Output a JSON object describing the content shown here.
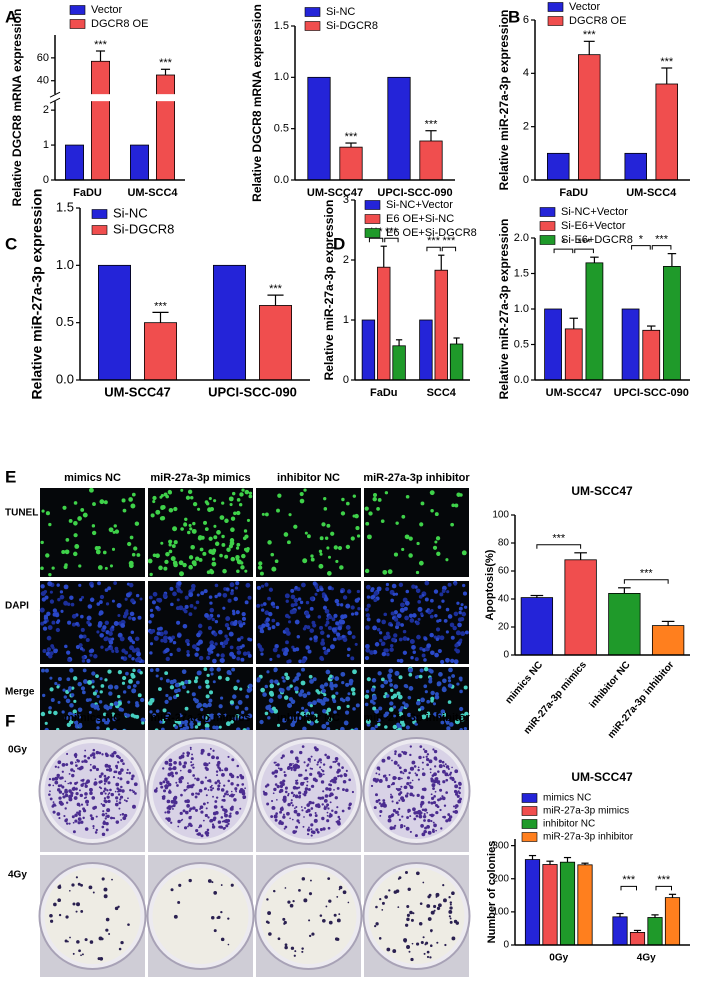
{
  "chart_data": [
    {
      "type": "bar",
      "panel": "A",
      "ylabel": "Relative DGCR8 mRNA expression",
      "categories": [
        "FaDU",
        "UM-SCC4"
      ],
      "series": [
        {
          "name": "Vector",
          "color": "#2424d8",
          "values": [
            1,
            1
          ]
        },
        {
          "name": "DGCR8 OE",
          "color": "#f04e4e",
          "values": [
            57,
            45
          ],
          "errors": [
            9,
            5
          ]
        }
      ],
      "significance": [
        "***",
        "***"
      ],
      "ylim": [
        0,
        80
      ],
      "ybreak": [
        2.2,
        30
      ],
      "yticks": [
        0,
        1,
        2,
        40,
        60
      ]
    },
    {
      "type": "bar",
      "ylabel": "Relative DGCR8 mRNA expression",
      "categories": [
        "UM-SCC47",
        "UPCI-SCC-090"
      ],
      "series": [
        {
          "name": "Si-NC",
          "color": "#2424d8",
          "values": [
            1,
            1
          ]
        },
        {
          "name": "Si-DGCR8",
          "color": "#f04e4e",
          "values": [
            0.32,
            0.38
          ],
          "errors": [
            0.04,
            0.1
          ]
        }
      ],
      "significance": [
        "***",
        "***"
      ],
      "ylim": [
        0,
        1.5
      ],
      "yticks": [
        {
          "value": 0,
          "label": "0.0"
        },
        {
          "value": 0.5,
          "label": "0.5"
        },
        {
          "value": 1,
          "label": "1.0"
        },
        {
          "value": 1.5,
          "label": "1.5"
        }
      ]
    },
    {
      "type": "bar",
      "panel": "B",
      "ylabel": "Relative miR-27a-3p expression",
      "categories": [
        "FaDU",
        "UM-SCC4"
      ],
      "series": [
        {
          "name": "Vector",
          "color": "#2424d8",
          "values": [
            1,
            1
          ]
        },
        {
          "name": "DGCR8 OE",
          "color": "#f04e4e",
          "values": [
            4.7,
            3.6
          ],
          "errors": [
            0.5,
            0.6
          ]
        }
      ],
      "significance": [
        "***",
        "***"
      ],
      "ylim": [
        0,
        6
      ],
      "yticks": [
        0,
        2,
        4,
        6
      ]
    },
    {
      "type": "bar",
      "panel": "C",
      "ylabel": "Relative miR-27a-3p expression",
      "categories": [
        "UM-SCC47",
        "UPCI-SCC-090"
      ],
      "series": [
        {
          "name": "Si-NC",
          "color": "#2424d8",
          "values": [
            1,
            1
          ]
        },
        {
          "name": "Si-DGCR8",
          "color": "#f04e4e",
          "values": [
            0.5,
            0.65
          ],
          "errors": [
            0.09,
            0.09
          ]
        }
      ],
      "significance": [
        "***",
        "***"
      ],
      "ylim": [
        0,
        1.5
      ],
      "yticks": [
        {
          "value": 0,
          "label": "0.0"
        },
        {
          "value": 0.5,
          "label": "0.5"
        },
        {
          "value": 1,
          "label": "1.0"
        },
        {
          "value": 1.5,
          "label": "1.5"
        }
      ]
    },
    {
      "type": "bar",
      "panel": "D",
      "ylabel": "Relative miR-27a-3p expression",
      "categories": [
        "FaDu",
        "SCC4"
      ],
      "series": [
        {
          "name": "Si-NC+Vector",
          "color": "#2424d8",
          "values": [
            1,
            1
          ]
        },
        {
          "name": "E6 OE+Si-NC",
          "color": "#f04e4e",
          "values": [
            1.88,
            1.83
          ],
          "errors": [
            0.35,
            0.25
          ]
        },
        {
          "name": "E6 OE+Si-DGCR8",
          "color": "#1f9a2a",
          "values": [
            0.57,
            0.6
          ],
          "errors": [
            0.1,
            0.1
          ]
        }
      ],
      "brackets": [
        [
          "***",
          "***"
        ],
        [
          "***",
          "***"
        ]
      ],
      "ylim": [
        0,
        3
      ],
      "yticks": [
        0,
        1,
        2,
        3
      ]
    },
    {
      "type": "bar",
      "ylabel": "Relative miR-27a-3p expression",
      "categories": [
        "UM-SCC47",
        "UPCI-SCC-090"
      ],
      "series": [
        {
          "name": "Si-NC+Vector",
          "color": "#2424d8",
          "values": [
            1,
            1
          ]
        },
        {
          "name": "Si-E6+Vector",
          "color": "#f04e4e",
          "values": [
            0.72,
            0.7
          ],
          "errors": [
            0.15,
            0.06
          ]
        },
        {
          "name": "Si-E6+DGCR8",
          "color": "#1f9a2a",
          "values": [
            1.65,
            1.6
          ],
          "errors": [
            0.08,
            0.18
          ]
        }
      ],
      "brackets": [
        [
          "*",
          "***"
        ],
        [
          "*",
          "***"
        ]
      ],
      "ylim": [
        0,
        2
      ],
      "yticks": [
        {
          "value": 0,
          "label": "0.0"
        },
        {
          "value": 0.5,
          "label": "0.5"
        },
        {
          "value": 1,
          "label": "1.0"
        },
        {
          "value": 1.5,
          "label": "1.5"
        },
        {
          "value": 2,
          "label": "2.0"
        }
      ]
    },
    {
      "type": "bar",
      "panel": "E",
      "title": "UM-SCC47",
      "ylabel": "Apoptosis(%)",
      "categories": [
        "mimics NC",
        "miR-27a-3p mimics",
        "inhibitor NC",
        "miR-27a-3p inhibitor"
      ],
      "values": [
        41,
        68,
        44,
        21
      ],
      "errors": [
        1.5,
        5,
        4,
        3
      ],
      "colors": [
        "#2424d8",
        "#f04e4e",
        "#1f9a2a",
        "#ff7f1e"
      ],
      "brackets": [
        "***",
        "***"
      ],
      "ylim": [
        0,
        100
      ],
      "yticks": [
        0,
        20,
        40,
        60,
        80,
        100
      ]
    },
    {
      "type": "bar",
      "panel": "F",
      "title": "UM-SCC47",
      "ylabel": "Number of colonies",
      "categories": [
        "0Gy",
        "4Gy"
      ],
      "series": [
        {
          "name": "mimics NC",
          "color": "#2424d8",
          "values": [
            258,
            85
          ],
          "errors": [
            12,
            10
          ]
        },
        {
          "name": "miR-27a-3p mimics",
          "color": "#f04e4e",
          "values": [
            243,
            38
          ],
          "errors": [
            10,
            6
          ]
        },
        {
          "name": "inhibitor NC",
          "color": "#1f9a2a",
          "values": [
            250,
            83
          ],
          "errors": [
            14,
            8
          ]
        },
        {
          "name": "miR-27a-3p inhibitor",
          "color": "#ff7f1e",
          "values": [
            242,
            143
          ],
          "errors": [
            5,
            10
          ]
        }
      ],
      "brackets": [
        [],
        [
          "***",
          "***"
        ]
      ],
      "ylim": [
        0,
        320
      ],
      "yticks": [
        0,
        100,
        200,
        300
      ]
    }
  ],
  "images_e": {
    "columns": [
      "mimics NC",
      "miR-27a-3p mimics",
      "inhibitor NC",
      "miR-27a-3p inhibitor"
    ],
    "rows": [
      "TUNEL",
      "DAPI",
      "Merge"
    ]
  },
  "images_f": {
    "columns": [
      "mimics NC",
      "miR-27a-3p mimics",
      "inhibitor NC",
      "miR-27a-3p inhibitor"
    ],
    "rows": [
      "0Gy",
      "4Gy"
    ]
  }
}
